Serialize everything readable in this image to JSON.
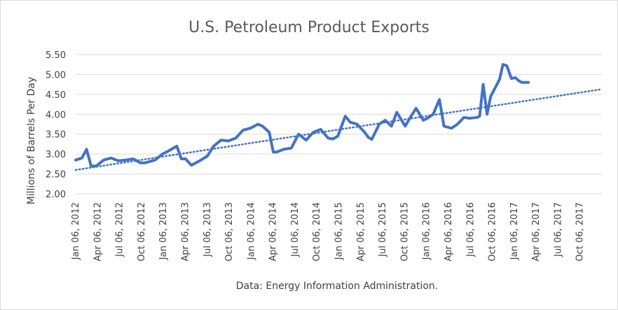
{
  "chart_data": {
    "type": "line",
    "title": "U.S. Petroleum Product Exports",
    "ylabel": "Millions of Barrels Per Day",
    "xlabel": "",
    "source_note": "Data: Energy Information Administration.",
    "ylim": [
      2.0,
      5.5
    ],
    "y_ticks": [
      "5.50",
      "5.00",
      "4.50",
      "4.00",
      "3.50",
      "3.00",
      "2.50",
      "2.00"
    ],
    "y_tick_values": [
      5.5,
      5.0,
      4.5,
      4.0,
      3.5,
      3.0,
      2.5,
      2.0
    ],
    "x_ticks": [
      "Jan 06, 2012",
      "Apr 06, 2012",
      "Jul 06, 2012",
      "Oct 06, 2012",
      "Jan 06, 2013",
      "Apr 06, 2013",
      "Jul 06, 2013",
      "Oct 06, 2013",
      "Jan 06, 2014",
      "Apr 06, 2014",
      "Jul 06, 2014",
      "Oct 06, 2014",
      "Jan 06, 2015",
      "Apr 06, 2015",
      "Jul 06, 2015",
      "Oct 06, 2015",
      "Jan 06, 2016",
      "Apr 06, 2016",
      "Jul 06, 2016",
      "Oct 06, 2016",
      "Jan 06, 2017",
      "Apr 06, 2017",
      "Jul 06, 2017",
      "Oct 06, 2017"
    ],
    "x_range": [
      "2012-01-06",
      "2017-12-31"
    ],
    "grid": "horizontal",
    "legend": "none",
    "colors": {
      "series": "#4472c4",
      "trend": "#4472c4",
      "grid": "#d9d9d9",
      "text": "#404040",
      "title": "#595959"
    },
    "series": [
      {
        "x": [
          "2012-01-06",
          "2012-02-01",
          "2012-02-20",
          "2012-03-10",
          "2012-04-01",
          "2012-05-01",
          "2012-06-01",
          "2012-07-01",
          "2012-08-01",
          "2012-09-01",
          "2012-10-01",
          "2012-10-20",
          "2012-12-01",
          "2013-01-01",
          "2013-02-01",
          "2013-03-01",
          "2013-03-20",
          "2013-04-06",
          "2013-05-01",
          "2013-06-01",
          "2013-07-06",
          "2013-08-01",
          "2013-09-01",
          "2013-10-01",
          "2013-11-01",
          "2013-12-01",
          "2014-01-01",
          "2014-02-01",
          "2014-02-20",
          "2014-03-20",
          "2014-04-06",
          "2014-04-20",
          "2014-05-20",
          "2014-06-20",
          "2014-07-20",
          "2014-08-20",
          "2014-09-20",
          "2014-10-20",
          "2014-11-20",
          "2014-12-10",
          "2014-12-30",
          "2015-01-30",
          "2015-02-20",
          "2015-03-20",
          "2015-04-20",
          "2015-05-06",
          "2015-05-20",
          "2015-06-20",
          "2015-07-15",
          "2015-08-10",
          "2015-09-01",
          "2015-10-06",
          "2015-10-25",
          "2015-11-20",
          "2015-12-20",
          "2016-01-06",
          "2016-01-30",
          "2016-02-25",
          "2016-03-15",
          "2016-04-15",
          "2016-05-10",
          "2016-06-06",
          "2016-06-30",
          "2016-07-30",
          "2016-08-10",
          "2016-08-25",
          "2016-09-10",
          "2016-09-25",
          "2016-10-10",
          "2016-11-01",
          "2016-11-15",
          "2016-12-01",
          "2016-12-20",
          "2017-01-06",
          "2017-01-18",
          "2017-02-01",
          "2017-02-15",
          "2017-03-01"
        ],
        "values": [
          2.85,
          2.9,
          3.12,
          2.7,
          2.7,
          2.85,
          2.9,
          2.83,
          2.85,
          2.88,
          2.78,
          2.78,
          2.85,
          3.0,
          3.1,
          3.2,
          2.88,
          2.88,
          2.72,
          2.82,
          2.95,
          3.2,
          3.35,
          3.33,
          3.4,
          3.6,
          3.65,
          3.75,
          3.7,
          3.55,
          3.05,
          3.05,
          3.12,
          3.15,
          3.5,
          3.35,
          3.55,
          3.62,
          3.4,
          3.38,
          3.45,
          3.95,
          3.8,
          3.75,
          3.55,
          3.42,
          3.37,
          3.75,
          3.85,
          3.7,
          4.05,
          3.7,
          3.9,
          4.15,
          3.85,
          3.9,
          4.0,
          4.37,
          3.7,
          3.65,
          3.75,
          3.92,
          3.9,
          3.92,
          3.95,
          4.75,
          4.0,
          4.45,
          4.62,
          4.88,
          5.25,
          5.22,
          4.9,
          4.92,
          4.85,
          4.8,
          4.8,
          4.8
        ]
      }
    ],
    "trendline": {
      "type": "linear",
      "style": "dotted",
      "x": [
        "2012-01-06",
        "2017-12-31"
      ],
      "values": [
        2.6,
        4.63
      ]
    }
  }
}
